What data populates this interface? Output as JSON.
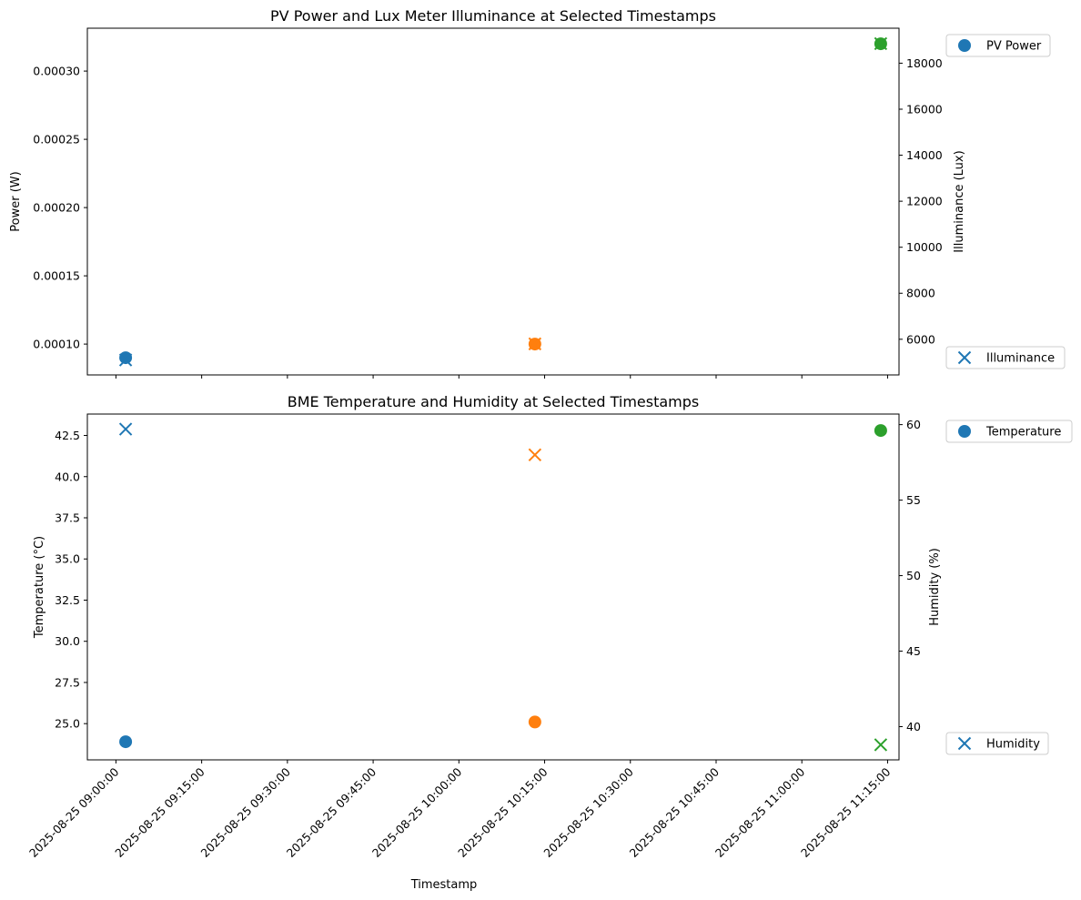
{
  "colors": {
    "blue": "#1f77b4",
    "orange": "#ff7f0e",
    "green": "#2ca02c"
  },
  "chart_data": [
    {
      "type": "scatter",
      "title": "PV Power and Lux Meter Illuminance at Selected Timestamps",
      "xlabel": "",
      "ylabel": "Power (W)",
      "ylabel_right": "Illuminance (Lux)",
      "xlim": [
        "2025-08-25 08:55:00",
        "2025-08-25 11:17:00"
      ],
      "ylim": [
        7.74e-05,
        0.0003314
      ],
      "ylim_right": [
        4450,
        19520
      ],
      "yticks": [
        0.0001,
        0.00015,
        0.0002,
        0.00025,
        0.0003
      ],
      "ytick_labels": [
        "0.00010",
        "0.00015",
        "0.00020",
        "0.00025",
        "0.00030"
      ],
      "yticks_right": [
        6000,
        8000,
        10000,
        12000,
        14000,
        16000,
        18000
      ],
      "ytick_labels_right": [
        "6000",
        "8000",
        "10000",
        "12000",
        "14000",
        "16000",
        "18000"
      ],
      "grid": false,
      "legend": [
        {
          "label": "PV Power",
          "marker": "circle",
          "placement": "top-right-outside"
        },
        {
          "label": "Illuminance",
          "marker": "x",
          "placement": "bottom-right-outside"
        }
      ],
      "series": [
        {
          "name": "PV Power",
          "axis": "left",
          "marker": "circle",
          "points": [
            {
              "x": "2025-08-25 09:01:42",
              "y": 9e-05
            },
            {
              "x": "2025-08-25 10:13:18",
              "y": 0.0001
            },
            {
              "x": "2025-08-25 11:13:48",
              "y": 0.00032
            }
          ]
        },
        {
          "name": "Illuminance",
          "axis": "right",
          "marker": "x",
          "points": [
            {
              "x": "2025-08-25 09:01:42",
              "y": 5100
            },
            {
              "x": "2025-08-25 10:13:18",
              "y": 5800
            },
            {
              "x": "2025-08-25 11:13:48",
              "y": 18850
            }
          ]
        }
      ]
    },
    {
      "type": "scatter",
      "title": "BME Temperature and Humidity at Selected Timestamps",
      "xlabel": "Timestamp",
      "ylabel": "Temperature (°C)",
      "ylabel_right": "Humidity (%)",
      "xlim": [
        "2025-08-25 08:55:00",
        "2025-08-25 11:17:00"
      ],
      "ylim": [
        22.8,
        43.8
      ],
      "ylim_right": [
        37.8,
        60.7
      ],
      "yticks": [
        25.0,
        27.5,
        30.0,
        32.5,
        35.0,
        37.5,
        40.0,
        42.5
      ],
      "ytick_labels": [
        "25.0",
        "27.5",
        "30.0",
        "32.5",
        "35.0",
        "37.5",
        "40.0",
        "42.5"
      ],
      "yticks_right": [
        40,
        45,
        50,
        55,
        60
      ],
      "ytick_labels_right": [
        "40",
        "45",
        "50",
        "55",
        "60"
      ],
      "xticks": [
        "2025-08-25 09:00:00",
        "2025-08-25 09:15:00",
        "2025-08-25 09:30:00",
        "2025-08-25 09:45:00",
        "2025-08-25 10:00:00",
        "2025-08-25 10:15:00",
        "2025-08-25 10:30:00",
        "2025-08-25 10:45:00",
        "2025-08-25 11:00:00",
        "2025-08-25 11:15:00"
      ],
      "xtick_labels": [
        "2025-08-25 09:00:00",
        "2025-08-25 09:15:00",
        "2025-08-25 09:30:00",
        "2025-08-25 09:45:00",
        "2025-08-25 10:00:00",
        "2025-08-25 10:15:00",
        "2025-08-25 10:30:00",
        "2025-08-25 10:45:00",
        "2025-08-25 11:00:00",
        "2025-08-25 11:15:00"
      ],
      "grid": false,
      "legend": [
        {
          "label": "Temperature",
          "marker": "circle",
          "placement": "top-right-outside"
        },
        {
          "label": "Humidity",
          "marker": "x",
          "placement": "bottom-right-outside"
        }
      ],
      "series": [
        {
          "name": "Temperature",
          "axis": "left",
          "marker": "circle",
          "points": [
            {
              "x": "2025-08-25 09:01:42",
              "y": 23.9
            },
            {
              "x": "2025-08-25 10:13:18",
              "y": 25.1
            },
            {
              "x": "2025-08-25 11:13:48",
              "y": 42.8
            }
          ]
        },
        {
          "name": "Humidity",
          "axis": "right",
          "marker": "x",
          "points": [
            {
              "x": "2025-08-25 09:01:42",
              "y": 59.7
            },
            {
              "x": "2025-08-25 10:13:18",
              "y": 58.0
            },
            {
              "x": "2025-08-25 11:13:48",
              "y": 38.8
            }
          ]
        }
      ]
    }
  ]
}
